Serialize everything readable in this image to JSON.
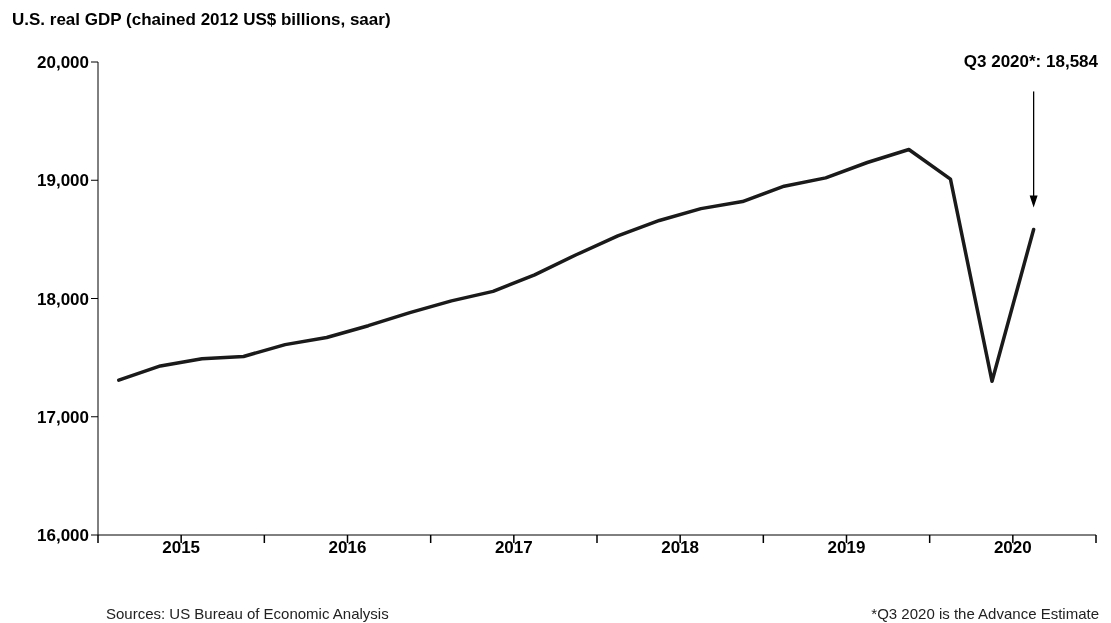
{
  "chart_data": {
    "type": "line",
    "title": "U.S. real GDP (chained 2012 US$ billions, saar)",
    "x": [
      2015.125,
      2015.375,
      2015.625,
      2015.875,
      2016.125,
      2016.375,
      2016.625,
      2016.875,
      2017.125,
      2017.375,
      2017.625,
      2017.875,
      2018.125,
      2018.375,
      2018.625,
      2018.875,
      2019.125,
      2019.375,
      2019.625,
      2019.875,
      2020.125,
      2020.375,
      2020.625
    ],
    "series": [
      {
        "color": "#1a1a1a",
        "values": [
          17310,
          17430,
          17490,
          17510,
          17610,
          17670,
          17770,
          17880,
          17980,
          18060,
          18200,
          18370,
          18530,
          18660,
          18760,
          18820,
          18950,
          19020,
          19150,
          19260,
          19010,
          17300,
          18584
        ]
      }
    ],
    "xlim": [
      2015,
      2021
    ],
    "xticks": [
      {
        "value": 2015,
        "label": null
      },
      {
        "value": 2015.5,
        "label": "2015"
      },
      {
        "value": 2016,
        "label": null
      },
      {
        "value": 2016.5,
        "label": "2016"
      },
      {
        "value": 2017,
        "label": null
      },
      {
        "value": 2017.5,
        "label": "2017"
      },
      {
        "value": 2018,
        "label": null
      },
      {
        "value": 2018.5,
        "label": "2018"
      },
      {
        "value": 2019,
        "label": null
      },
      {
        "value": 2019.5,
        "label": "2019"
      },
      {
        "value": 2020,
        "label": null
      },
      {
        "value": 2020.5,
        "label": "2020"
      },
      {
        "value": 2021,
        "label": null
      }
    ],
    "ylim": [
      16000,
      20000
    ],
    "yticks": [
      {
        "value": 16000,
        "label": "16,000"
      },
      {
        "value": 17000,
        "label": "17,000"
      },
      {
        "value": 18000,
        "label": "18,000"
      },
      {
        "value": 19000,
        "label": "19,000"
      },
      {
        "value": 20000,
        "label": "20,000"
      }
    ],
    "grid": false,
    "marker": "none",
    "line_style": "solid",
    "annotations": [
      "Q3 2020*: 18,584",
      "Sources: US Bureau of Economic Analysis",
      "*Q3 2020 is the Advance Estimate"
    ]
  }
}
